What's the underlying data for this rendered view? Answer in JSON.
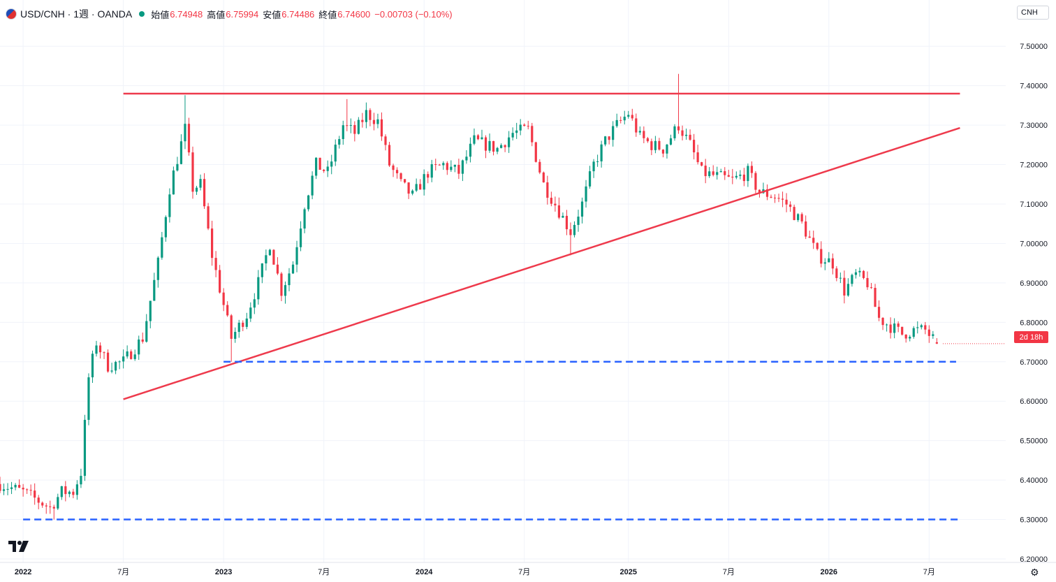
{
  "header": {
    "symbol": "USD/CNH · 1週 · OANDA",
    "open_label": "始値",
    "open_value": "6.74948",
    "high_label": "高値",
    "high_value": "6.75994",
    "low_label": "安値",
    "low_value": "6.74486",
    "close_label": "終値",
    "close_value": "6.74600",
    "change": "−0.00703 (−0.10%)"
  },
  "currency_button": "CNH",
  "countdown": "2d 18h",
  "colors": {
    "up": "#089981",
    "down": "#f23645",
    "trendline": "#ee3a4c",
    "level": "#2962ff",
    "grid": "#f0f3fa"
  },
  "icons": {
    "logo": "tradingview-logo-icon",
    "settings": "gear-icon",
    "flag": "usd-cnh-flag-icon"
  },
  "chart_data": {
    "type": "candlestick",
    "interval": "weekly",
    "y_scale": "linear",
    "ylim": [
      6.2,
      7.55
    ],
    "xlim": [
      "2021-11-22",
      "2026-09-07"
    ],
    "y_ticks": [
      "7.50000",
      "7.40000",
      "7.30000",
      "7.20000",
      "7.10000",
      "7.00000",
      "6.90000",
      "6.80000",
      "6.70000",
      "6.60000",
      "6.50000",
      "6.40000",
      "6.30000",
      "6.20000"
    ],
    "x_ticks": [
      {
        "date": "2022-01-03",
        "label": "2022"
      },
      {
        "date": "2022-07-04",
        "label": "7月"
      },
      {
        "date": "2023-01-02",
        "label": "2023"
      },
      {
        "date": "2023-07-03",
        "label": "7月"
      },
      {
        "date": "2024-01-01",
        "label": "2024"
      },
      {
        "date": "2024-07-01",
        "label": "7月"
      },
      {
        "date": "2025-01-06",
        "label": "2025"
      },
      {
        "date": "2025-07-07",
        "label": "7月"
      },
      {
        "date": "2026-01-05",
        "label": "2026"
      },
      {
        "date": "2026-07-06",
        "label": "7月"
      }
    ],
    "anchors": [
      [
        "2021-11-22",
        6.39
      ],
      [
        "2022-01-03",
        6.37
      ],
      [
        "2022-02-21",
        6.33
      ],
      [
        "2022-03-14",
        6.37
      ],
      [
        "2022-04-04",
        6.37
      ],
      [
        "2022-04-18",
        6.42
      ],
      [
        "2022-05-02",
        6.66
      ],
      [
        "2022-05-16",
        6.75
      ],
      [
        "2022-06-06",
        6.69
      ],
      [
        "2022-07-04",
        6.7
      ],
      [
        "2022-08-08",
        6.76
      ],
      [
        "2022-09-05",
        6.95
      ],
      [
        "2022-09-26",
        7.14
      ],
      [
        "2022-10-24",
        7.29
      ],
      [
        "2022-11-07",
        7.14
      ],
      [
        "2022-11-21",
        7.15
      ],
      [
        "2022-12-12",
        6.97
      ],
      [
        "2023-01-16",
        6.76
      ],
      [
        "2023-02-13",
        6.82
      ],
      [
        "2023-03-06",
        6.9
      ],
      [
        "2023-03-27",
        7.0
      ],
      [
        "2023-04-17",
        6.88
      ],
      [
        "2023-05-08",
        6.95
      ],
      [
        "2023-05-29",
        7.1
      ],
      [
        "2023-06-19",
        7.2
      ],
      [
        "2023-07-10",
        7.18
      ],
      [
        "2023-08-07",
        7.3
      ],
      [
        "2023-08-28",
        7.28
      ],
      [
        "2023-09-18",
        7.33
      ],
      [
        "2023-10-09",
        7.31
      ],
      [
        "2023-10-30",
        7.2
      ],
      [
        "2023-11-20",
        7.15
      ],
      [
        "2023-12-11",
        7.12
      ],
      [
        "2024-01-08",
        7.18
      ],
      [
        "2024-02-05",
        7.2
      ],
      [
        "2024-03-04",
        7.18
      ],
      [
        "2024-04-01",
        7.26
      ],
      [
        "2024-05-13",
        7.24
      ],
      [
        "2024-06-10",
        7.28
      ],
      [
        "2024-07-08",
        7.29
      ],
      [
        "2024-08-05",
        7.15
      ],
      [
        "2024-08-26",
        7.1
      ],
      [
        "2024-09-23",
        7.03
      ],
      [
        "2024-10-14",
        7.1
      ],
      [
        "2024-11-04",
        7.2
      ],
      [
        "2024-11-25",
        7.26
      ],
      [
        "2024-12-16",
        7.3
      ],
      [
        "2025-01-06",
        7.33
      ],
      [
        "2025-01-27",
        7.27
      ],
      [
        "2025-02-17",
        7.25
      ],
      [
        "2025-03-10",
        7.24
      ],
      [
        "2025-04-07",
        7.3
      ],
      [
        "2025-04-28",
        7.25
      ],
      [
        "2025-05-19",
        7.18
      ],
      [
        "2025-06-16",
        7.17
      ],
      [
        "2025-07-14",
        7.16
      ],
      [
        "2025-08-11",
        7.18
      ],
      [
        "2025-09-01",
        7.13
      ],
      [
        "2025-09-29",
        7.12
      ],
      [
        "2025-10-20",
        7.1
      ],
      [
        "2025-11-17",
        7.05
      ],
      [
        "2025-12-15",
        6.97
      ],
      [
        "2026-01-12",
        6.95
      ],
      [
        "2026-02-02",
        6.88
      ],
      [
        "2026-02-23",
        6.92
      ],
      [
        "2026-03-16",
        6.9
      ],
      [
        "2026-04-06",
        6.81
      ],
      [
        "2026-04-27",
        6.79
      ],
      [
        "2026-05-18",
        6.77
      ],
      [
        "2026-06-08",
        6.78
      ],
      [
        "2026-06-29",
        6.78
      ],
      [
        "2026-07-20",
        6.746
      ]
    ],
    "wick_extremes": [
      [
        "2022-10-24",
        7.376
      ],
      [
        "2023-01-16",
        6.7
      ],
      [
        "2023-08-14",
        7.366
      ],
      [
        "2024-09-23",
        6.97
      ],
      [
        "2025-04-07",
        7.43
      ],
      [
        "2022-02-28",
        6.3
      ]
    ],
    "trendlines": [
      {
        "kind": "resistance",
        "color": "red",
        "from": [
          "2022-07-04",
          7.38
        ],
        "to": [
          "2026-08-31",
          7.38
        ]
      },
      {
        "kind": "rising-support",
        "color": "red",
        "from": [
          "2022-07-04",
          6.605
        ],
        "to": [
          "2026-08-31",
          7.293
        ]
      }
    ],
    "horizontal_levels": [
      {
        "style": "dashed",
        "color": "blue",
        "value": 6.7,
        "from": "2023-01-02",
        "to": "2026-08-24"
      },
      {
        "style": "dashed",
        "color": "blue",
        "value": 6.3,
        "from": "2022-01-03",
        "to": "2026-08-31"
      }
    ],
    "last": {
      "open": 6.74948,
      "high": 6.75994,
      "low": 6.74486,
      "close": 6.746
    }
  }
}
